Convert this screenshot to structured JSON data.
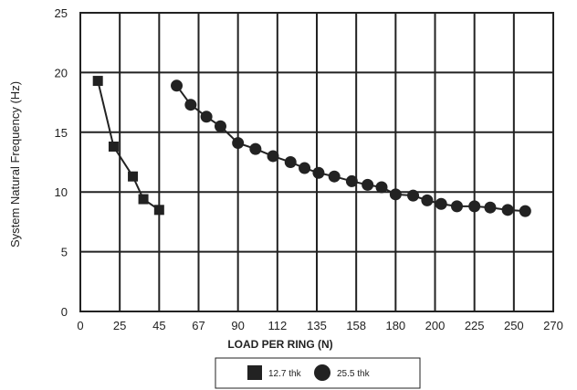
{
  "chart_data": {
    "type": "line",
    "title": "",
    "xlabel": "LOAD PER RING (N)",
    "ylabel": "System Natural Frequency (Hz)",
    "x_tick_labels": [
      "0",
      "25",
      "45",
      "67",
      "90",
      "112",
      "135",
      "158",
      "180",
      "200",
      "225",
      "250",
      "270"
    ],
    "y_tick_labels": [
      "0",
      "5",
      "10",
      "15",
      "20",
      "25"
    ],
    "xlim": [
      0,
      270
    ],
    "ylim": [
      0,
      25
    ],
    "grid": true,
    "legend_position": "bottom",
    "series": [
      {
        "name": "12.7 thk",
        "marker": "square",
        "color": "#222222",
        "points": [
          [
            10,
            19.3
          ],
          [
            19,
            13.8
          ],
          [
            30,
            11.3
          ],
          [
            36,
            9.4
          ],
          [
            45,
            8.5
          ]
        ]
      },
      {
        "name": "25.5 thk",
        "marker": "circle",
        "color": "#222222",
        "points": [
          [
            55,
            18.9
          ],
          [
            63,
            17.3
          ],
          [
            72,
            16.3
          ],
          [
            80,
            15.5
          ],
          [
            90,
            14.1
          ],
          [
            100,
            13.6
          ],
          [
            110,
            13.0
          ],
          [
            120,
            12.5
          ],
          [
            128,
            12.0
          ],
          [
            136,
            11.6
          ],
          [
            145,
            11.3
          ],
          [
            155,
            10.9
          ],
          [
            164,
            10.6
          ],
          [
            172,
            10.4
          ],
          [
            180,
            9.8
          ],
          [
            190,
            9.7
          ],
          [
            198,
            9.3
          ],
          [
            206,
            9.0
          ],
          [
            215,
            8.8
          ],
          [
            225,
            8.8
          ],
          [
            234,
            8.7
          ],
          [
            244,
            8.5
          ],
          [
            254,
            8.4
          ]
        ]
      }
    ]
  }
}
